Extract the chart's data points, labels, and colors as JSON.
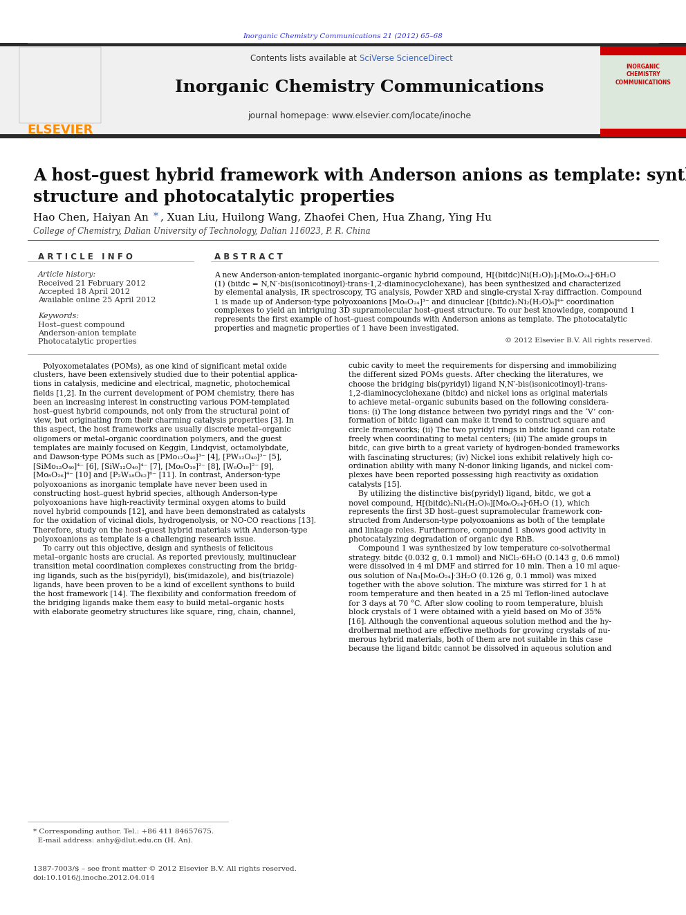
{
  "page_bg": "#ffffff",
  "top_journal_text": "Inorganic Chemistry Communications 21 (2012) 65–68",
  "top_journal_color": "#3333cc",
  "header_bg": "#f0f0f0",
  "header_contents_text": "Contents lists available at ",
  "header_sciverse_text": "SciVerse ScienceDirect",
  "header_sciverse_color": "#3366cc",
  "header_journal_title": "Inorganic Chemistry Communications",
  "header_journal_url": "journal homepage: www.elsevier.com/locate/inoche",
  "header_bar_color": "#2b2b2b",
  "elsevier_color": "#FF8C00",
  "article_title": "A host–guest hybrid framework with Anderson anions as template: synthesis, crystal\nstructure and photocatalytic properties",
  "authors": "Hao Chen, Haiyan An ",
  "authors_asterisk": "*",
  "authors_rest": ", Xuan Liu, Huilong Wang, Zhaofei Chen, Hua Zhang, Ying Hu",
  "affiliation": "College of Chemistry, Dalian University of Technology, Dalian 116023, P. R. China",
  "article_info_title": "A R T I C L E   I N F O",
  "abstract_title": "A B S T R A C T",
  "article_history_label": "Article history:",
  "received_text": "Received 21 February 2012",
  "accepted_text": "Accepted 18 April 2012",
  "available_text": "Available online 25 April 2012",
  "keywords_label": "Keywords:",
  "keyword1": "Host–guest compound",
  "keyword2": "Anderson-anion template",
  "keyword3": "Photocatalytic properties",
  "copyright_text": "© 2012 Elsevier B.V. All rights reserved.",
  "body_col1_lines": [
    "    Polyoxometalates (POMs), as one kind of significant metal oxide",
    "clusters, have been extensively studied due to their potential applica-",
    "tions in catalysis, medicine and electrical, magnetic, photochemical",
    "fields [1,2]. In the current development of POM chemistry, there has",
    "been an increasing interest in constructing various POM-templated",
    "host–guest hybrid compounds, not only from the structural point of",
    "view, but originating from their charming catalysis properties [3]. In",
    "this aspect, the host frameworks are usually discrete metal–organic",
    "oligomers or metal–organic coordination polymers, and the guest",
    "templates are mainly focused on Keggin, Lindqvist, octamolybdate,",
    "and Dawson-type POMs such as [PMo₁₂O₄₀]³⁻ [4], [PW₁₂O₄₀]³⁻ [5],",
    "[SiMo₁₂O₄₀]⁴⁻ [6], [SiW₁₂O₄₀]⁴⁻ [7], [Mo₈O₁₉]²⁻ [8], [W₆O₁₉]²⁻ [9],",
    "[Mo₈O₂₆]⁴⁻ [10] and [P₂W₁₈O₆₂]⁶⁻ [11]. In contrast, Anderson-type",
    "polyoxoanions as inorganic template have never been used in",
    "constructing host–guest hybrid species, although Anderson-type",
    "polyoxoanions have high-reactivity terminal oxygen atoms to build",
    "novel hybrid compounds [12], and have been demonstrated as catalysts",
    "for the oxidation of vicinal diols, hydrogenolysis, or NO-CO reactions [13].",
    "Therefore, study on the host–guest hybrid materials with Anderson-type",
    "polyoxoanions as template is a challenging research issue.",
    "    To carry out this objective, design and synthesis of felicitous",
    "metal–organic hosts are crucial. As reported previously, multinuclear",
    "transition metal coordination complexes constructing from the bridg-",
    "ing ligands, such as the bis(pyridyl), bis(imidazole), and bis(triazole)",
    "ligands, have been proven to be a kind of excellent synthons to build",
    "the host framework [14]. The flexibility and conformation freedom of",
    "the bridging ligands make them easy to build metal–organic hosts",
    "with elaborate geometry structures like square, ring, chain, channel,"
  ],
  "body_col2_lines": [
    "cubic cavity to meet the requirements for dispersing and immobilizing",
    "the different sized POMs guests. After checking the literatures, we",
    "choose the bridging bis(pyridyl) ligand N,N′-bis(isonicotinoyl)-trans-",
    "1,2-diaminocyclohexane (bitdc) and nickel ions as original materials",
    "to achieve metal–organic subunits based on the following considera-",
    "tions: (i) The long distance between two pyridyl rings and the ‘V’ con-",
    "formation of bitdc ligand can make it trend to construct square and",
    "circle frameworks; (ii) The two pyridyl rings in bitdc ligand can rotate",
    "freely when coordinating to metal centers; (iii) The amide groups in",
    "bitdc, can give birth to a great variety of hydrogen-bonded frameworks",
    "with fascinating structures; (iv) Nickel ions exhibit relatively high co-",
    "ordination ability with many N-donor linking ligands, and nickel com-",
    "plexes have been reported possessing high reactivity as oxidation",
    "catalysts [15].",
    "    By utilizing the distinctive bis(pyridyl) ligand, bitdc, we got a",
    "novel compound, H[(bitdc)₂Ni₂(H₂O)₆][Mo₆O₂₄]·6H₂O (1), which",
    "represents the first 3D host–guest supramolecular framework con-",
    "structed from Anderson-type polyoxoanions as both of the template",
    "and linkage roles. Furthermore, compound 1 shows good activity in",
    "photocatalyzing degradation of organic dye RhB.",
    "    Compound 1 was synthesized by low temperature co-solvothermal",
    "strategy. bitdc (0.032 g, 0.1 mmol) and NiCl₂·6H₂O (0.143 g, 0.6 mmol)",
    "were dissolved in 4 ml DMF and stirred for 10 min. Then a 10 ml aque-",
    "ous solution of Na₃[Mo₆O₂₄]·3H₂O (0.126 g, 0.1 mmol) was mixed",
    "together with the above solution. The mixture was stirred for 1 h at",
    "room temperature and then heated in a 25 ml Teflon-lined autoclave",
    "for 3 days at 70 °C. After slow cooling to room temperature, bluish",
    "block crystals of 1 were obtained with a yield based on Mo of 35%",
    "[16]. Although the conventional aqueous solution method and the hy-",
    "drothermal method are effective methods for growing crystals of nu-",
    "merous hybrid materials, both of them are not suitable in this case",
    "because the ligand bitdc cannot be dissolved in aqueous solution and"
  ],
  "abstract_lines": [
    "A new Anderson-anion-templated inorganic–organic hybrid compound, H[(bitdc)Ni(H₂O)₂]₂[Mo₆O₂₄]·6H₂O",
    "(1) (bitdc = N,N′-bis(isonicotinoyl)-trans-1,2-diaminocyclohexane), has been synthesized and characterized",
    "by elemental analysis, IR spectroscopy, TG analysis, Powder XRD and single-crystal X-ray diffraction. Compound",
    "1 is made up of Anderson-type polyoxoanions [Mo₆O₂₄]³⁻ and dinuclear [(bitdc)₂Ni₂(H₂O)₆]⁴⁺ coordination",
    "complexes to yield an intriguing 3D supramolecular host–guest structure. To our best knowledge, compound 1",
    "represents the first example of host–guest compounds with Anderson anions as template. The photocatalytic",
    "properties and magnetic properties of 1 have been investigated."
  ],
  "footnote_line1": "* Corresponding author. Tel.: +86 411 84657675.",
  "footnote_line2": "  E-mail address: anhy@dlut.edu.cn (H. An).",
  "bottom_line1": "1387-7003/$ – see front matter © 2012 Elsevier B.V. All rights reserved.",
  "bottom_line2": "doi:10.1016/j.inoche.2012.04.014"
}
